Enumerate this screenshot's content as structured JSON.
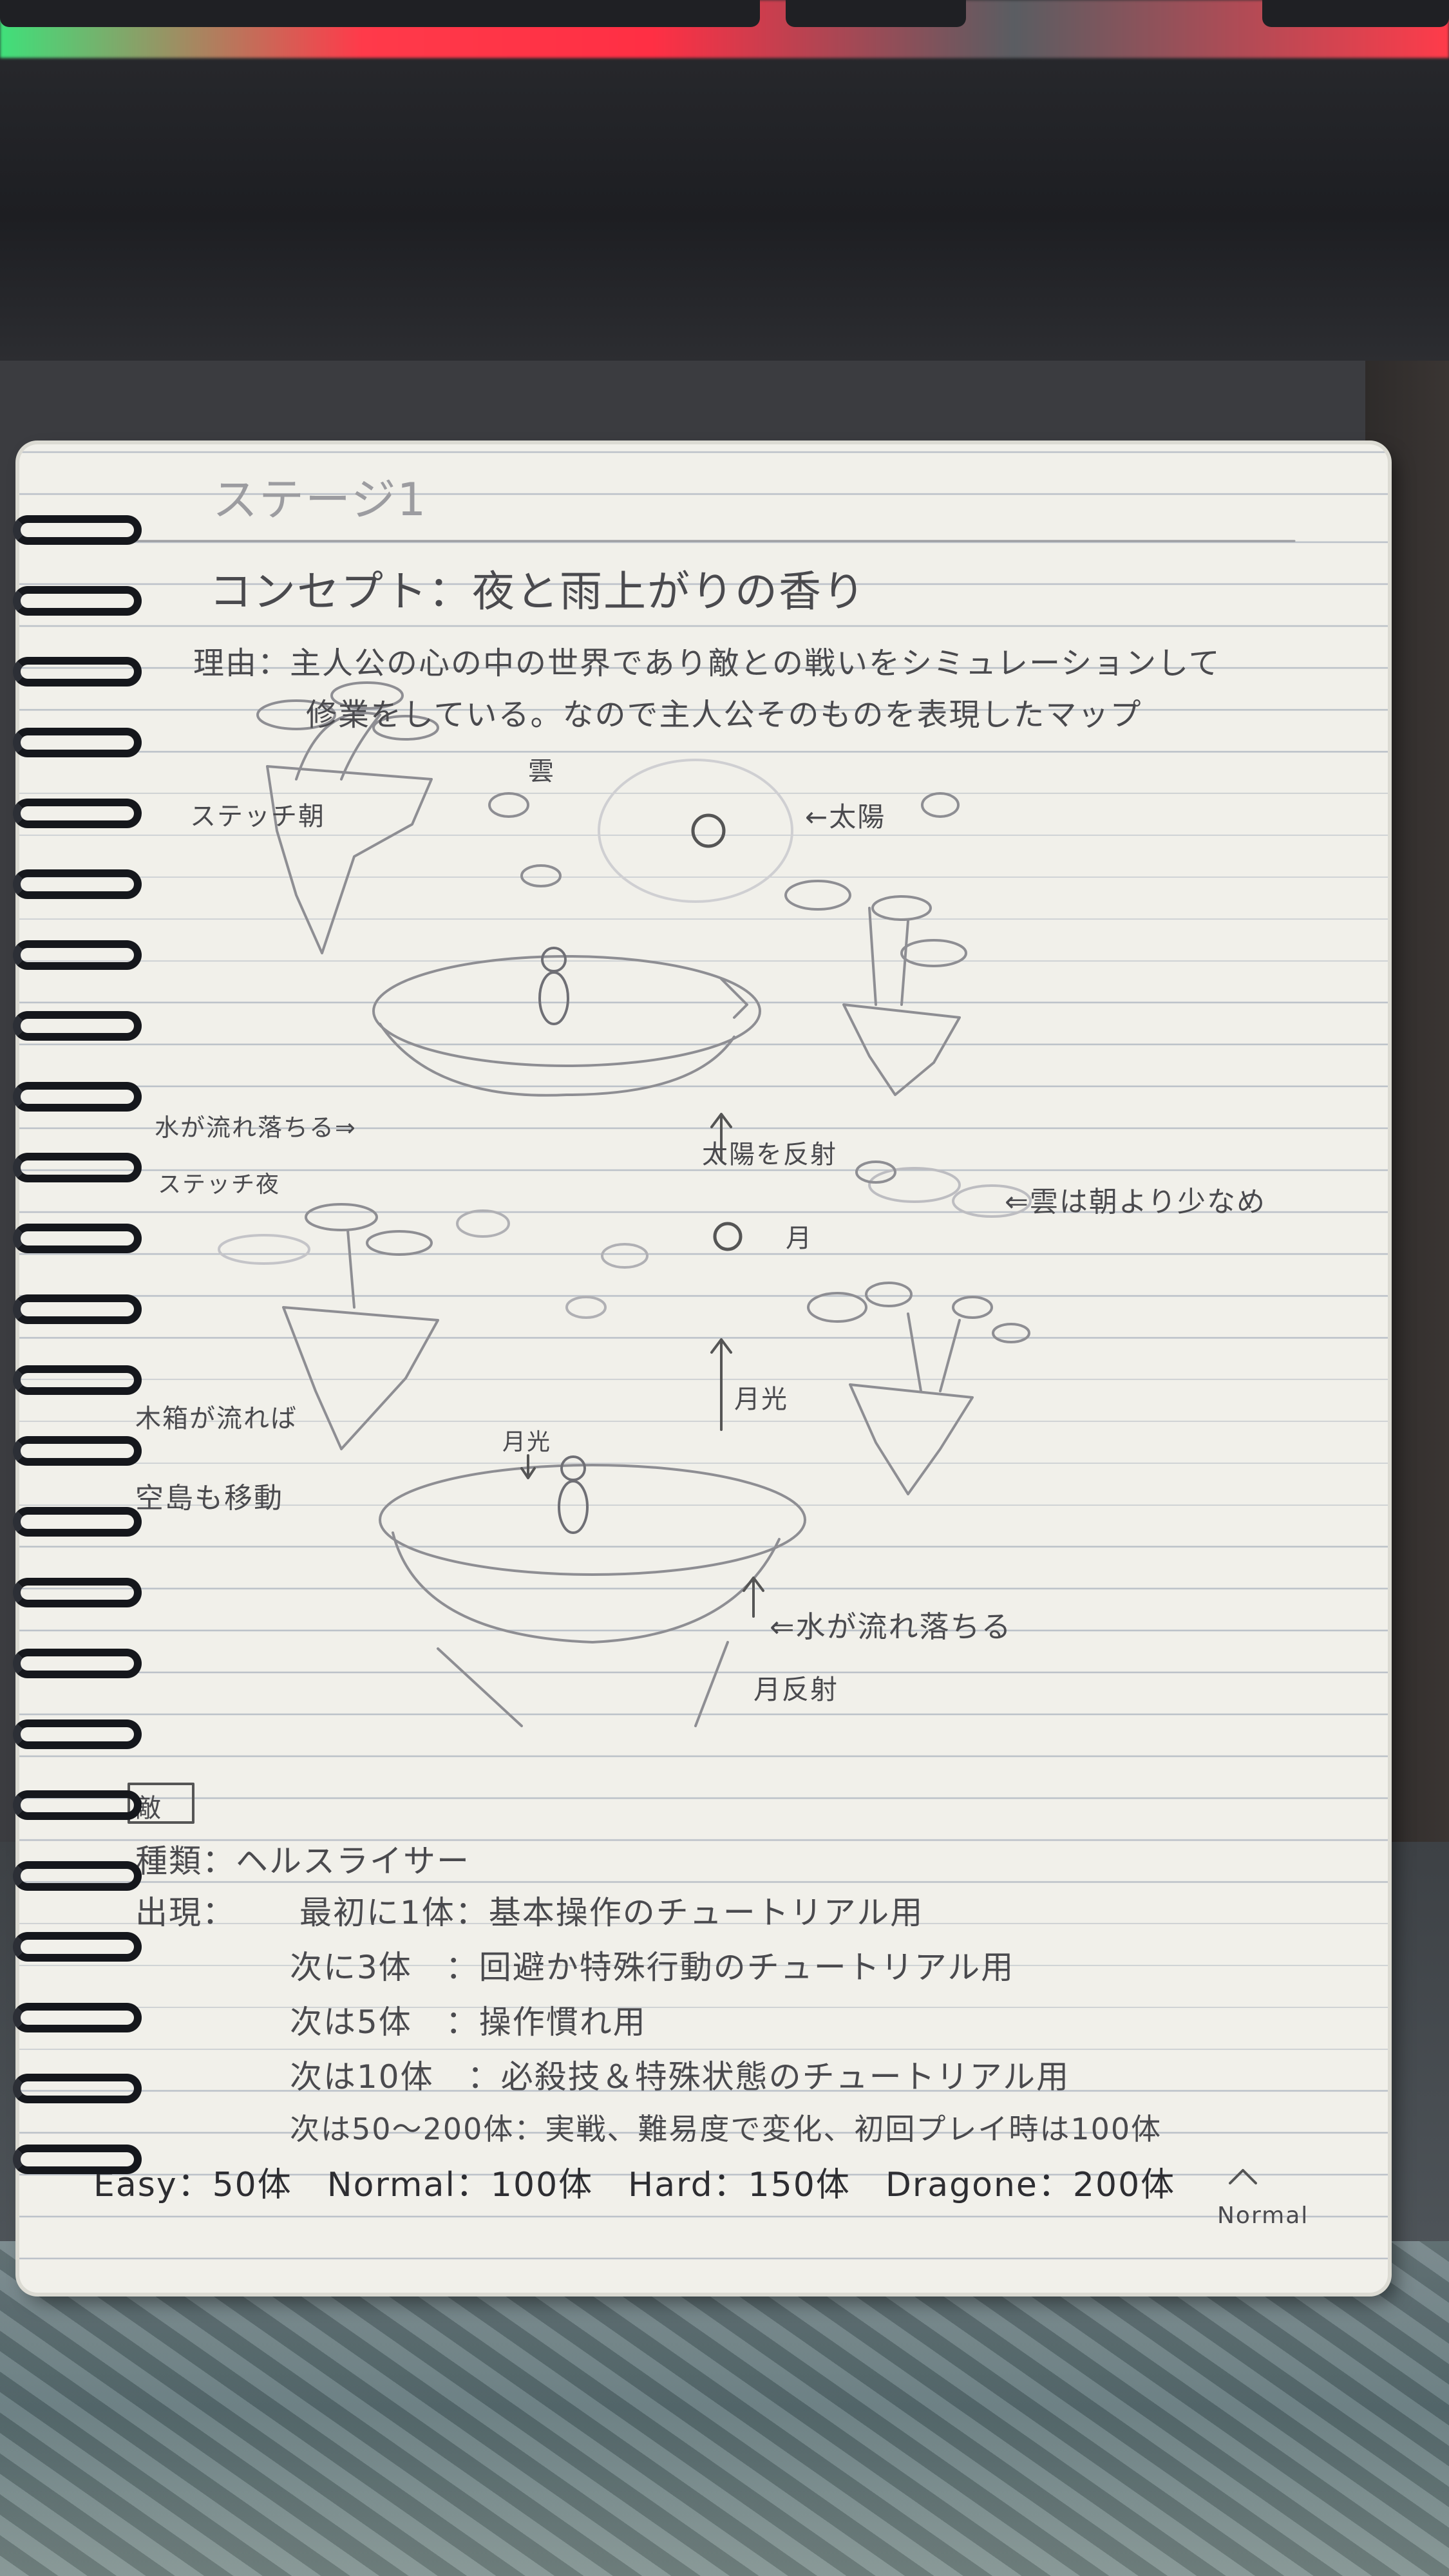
{
  "page": {
    "title": "ステージ1",
    "concept": "コンセプト：夜と雨上がりの香り",
    "reason_line1": "理由：主人公の心の中の世界であり敵との戦いをシミュレーションして",
    "reason_line2": "修業をしている。なので主人公そのものを表現したマップ"
  },
  "sketch_labels": {
    "morning": "ステッチ朝",
    "cloud": "雲",
    "sun": "←太陽",
    "water_flow_1": "水が流れ落ちる⇒",
    "sunlight": "太陽を反射",
    "cloud_more": "⇐雲は朝より少なめ",
    "night": "ステッチ夜",
    "moon": "月",
    "moonlight": "月光",
    "night_light": "月光",
    "floating_island": "空島も移動",
    "debris": "木箱が流れば",
    "water_flow_2": "⇐水が流れ落ちる",
    "reflection": "月反射"
  },
  "enemies": {
    "heading": "敵",
    "type": "種類：ヘルスライサー",
    "appear_label": "出現：",
    "rows": [
      "最初に1体：基本操作のチュートリアル用",
      "次に3体　：回避か特殊行動のチュートリアル用",
      "次は5体　：操作慣れ用",
      "次は10体　：必殺技＆特殊状態のチュートリアル用",
      "次は50～200体：実戦、難易度で変化、初回プレイ時は100体"
    ],
    "difficulty": "Easy：50体　Normal：100体　Hard：150体　Dragone：200体",
    "note": "Normal"
  }
}
